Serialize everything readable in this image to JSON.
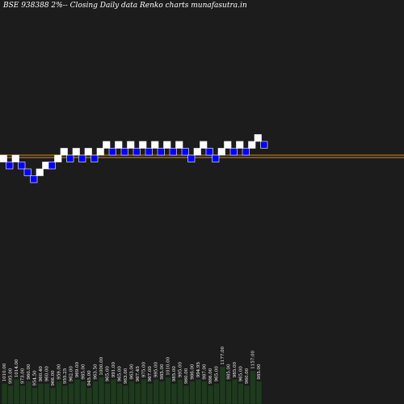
{
  "title": "BSE 938388  2%-- Closing Daily data Renko charts munafasutra.in",
  "colors": {
    "background": "#1c1c1c",
    "up_brick": "#ffffff",
    "down_brick": "#0000ff",
    "down_brick_border": "#ffffff",
    "level_line": "#e08a00",
    "volume_bar": "#1f3a1f",
    "volume_bar_edge": "#0f1f0f",
    "label_text": "#ffffff"
  },
  "chart_data": {
    "type": "renko",
    "brick_size_percent": 2,
    "bricks": [
      {
        "dir": "up",
        "level": 0
      },
      {
        "dir": "down",
        "level": -1
      },
      {
        "dir": "up",
        "level": 0
      },
      {
        "dir": "down",
        "level": -1
      },
      {
        "dir": "down",
        "level": -2
      },
      {
        "dir": "down",
        "level": -3
      },
      {
        "dir": "up",
        "level": -2
      },
      {
        "dir": "up",
        "level": -1
      },
      {
        "dir": "down",
        "level": -1
      },
      {
        "dir": "up",
        "level": 0
      },
      {
        "dir": "up",
        "level": 1
      },
      {
        "dir": "down",
        "level": 0
      },
      {
        "dir": "up",
        "level": 1
      },
      {
        "dir": "down",
        "level": 0
      },
      {
        "dir": "up",
        "level": 1
      },
      {
        "dir": "down",
        "level": 0
      },
      {
        "dir": "up",
        "level": 1
      },
      {
        "dir": "up",
        "level": 2
      },
      {
        "dir": "down",
        "level": 1
      },
      {
        "dir": "up",
        "level": 2
      },
      {
        "dir": "down",
        "level": 1
      },
      {
        "dir": "up",
        "level": 2
      },
      {
        "dir": "down",
        "level": 1
      },
      {
        "dir": "up",
        "level": 2
      },
      {
        "dir": "down",
        "level": 1
      },
      {
        "dir": "up",
        "level": 2
      },
      {
        "dir": "down",
        "level": 1
      },
      {
        "dir": "up",
        "level": 2
      },
      {
        "dir": "down",
        "level": 1
      },
      {
        "dir": "up",
        "level": 2
      },
      {
        "dir": "down",
        "level": 1
      },
      {
        "dir": "down",
        "level": 0
      },
      {
        "dir": "up",
        "level": 1
      },
      {
        "dir": "up",
        "level": 2
      },
      {
        "dir": "down",
        "level": 1
      },
      {
        "dir": "down",
        "level": 0
      },
      {
        "dir": "up",
        "level": 1
      },
      {
        "dir": "up",
        "level": 2
      },
      {
        "dir": "down",
        "level": 1
      },
      {
        "dir": "up",
        "level": 2
      },
      {
        "dir": "down",
        "level": 1
      },
      {
        "dir": "up",
        "level": 2
      },
      {
        "dir": "up",
        "level": 3
      },
      {
        "dir": "down",
        "level": 2
      }
    ],
    "reference_levels": [
      0,
      -0.35
    ],
    "volume_labels": [
      "1010.00",
      "995.00",
      "1014.00",
      "973.00",
      "960.00",
      "954.50",
      "960.40",
      "960.00",
      "966.00",
      "959.00",
      "955.25",
      "962.00",
      "969.00",
      "985.00",
      "945.00",
      "963.50",
      "1000.00",
      "965.00",
      "991.00",
      "965.00",
      "963.00",
      "963.00",
      "967.45",
      "975.00",
      "967.00",
      "995.00",
      "985.00",
      "1010.00",
      "985.00",
      "995.00",
      "960.00",
      "986.00",
      "994.95",
      "987.00",
      "966.00",
      "965.00",
      "1177.00",
      "985.00",
      "985.00",
      "965.00",
      "960.00",
      "1157.00",
      "985.00"
    ],
    "volume_values": [
      6,
      5,
      8,
      5,
      7,
      4,
      6,
      6,
      4,
      7,
      5,
      6,
      8,
      7,
      4,
      7,
      9,
      6,
      8,
      6,
      5,
      7,
      6,
      8,
      6,
      8,
      7,
      9,
      6,
      8,
      5,
      7,
      8,
      7,
      5,
      6,
      14,
      7,
      8,
      6,
      5,
      12,
      7
    ]
  }
}
